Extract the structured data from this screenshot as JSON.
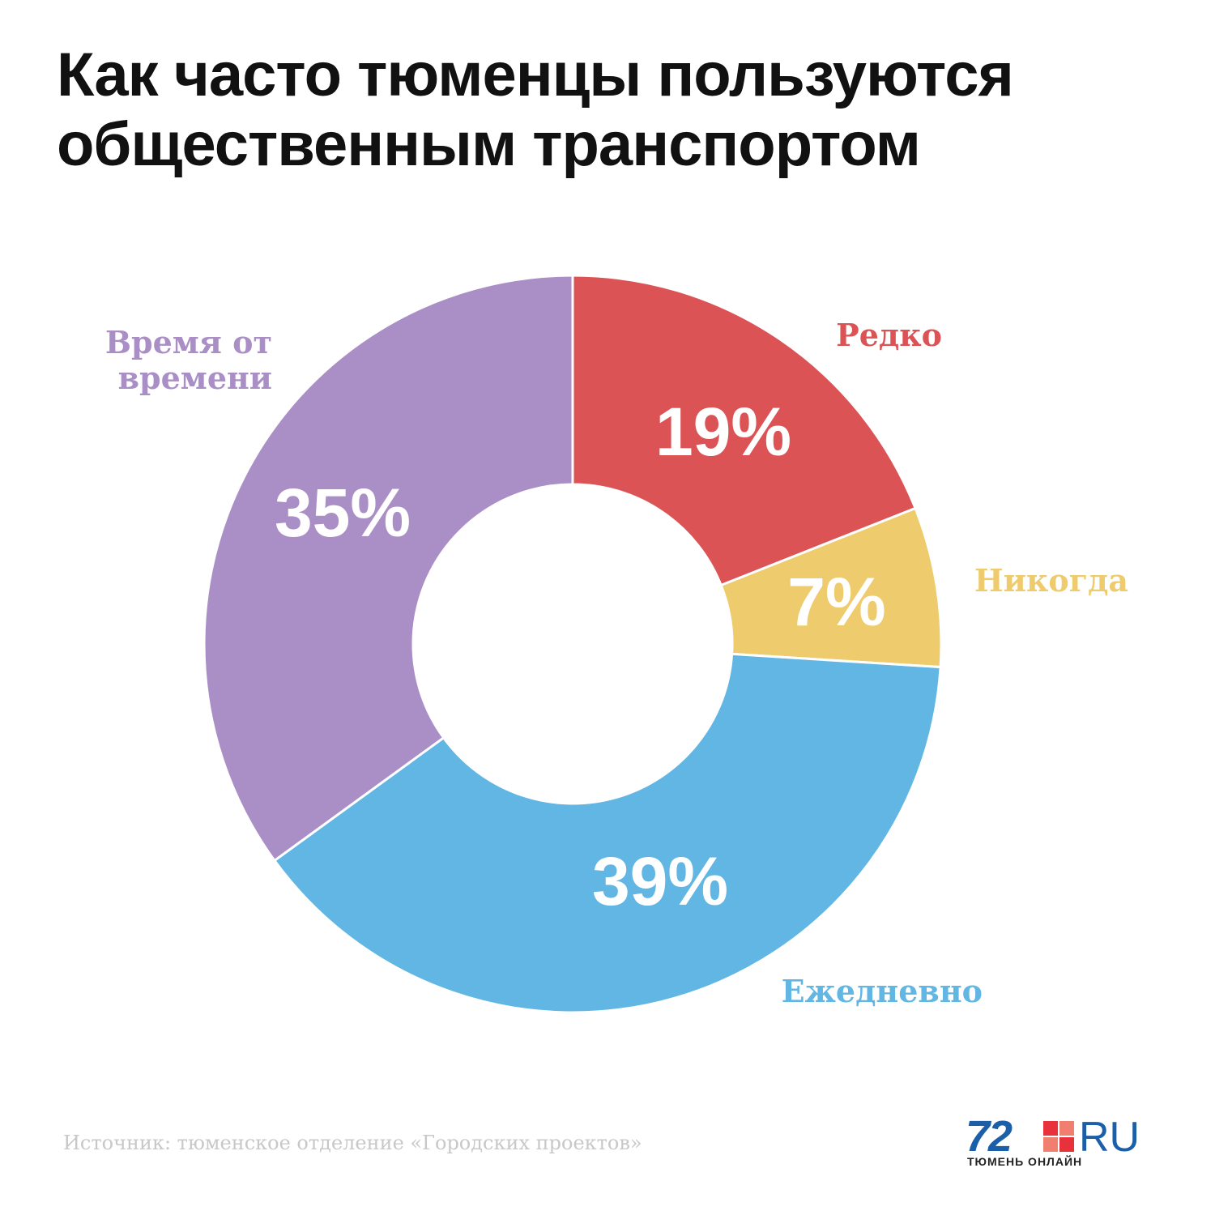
{
  "title": {
    "line1": "Как часто тюменцы пользуются",
    "line2": "общественным транспортом"
  },
  "chart_data": {
    "type": "pie",
    "donut": true,
    "legend": "none",
    "categories": [
      "Редко",
      "Никогда",
      "Ежедневно",
      "Время от времени"
    ],
    "values": [
      19,
      7,
      39,
      35
    ],
    "labels": [
      "19%",
      "7%",
      "39%",
      "35%"
    ],
    "colors": [
      "#dc5356",
      "#eecb6c",
      "#61b6e4",
      "#aa8fc6"
    ]
  },
  "source": "Источник: тюменское отделение «Городских проектов»",
  "logo": {
    "number": "72",
    "suffix": "RU",
    "tagline": "ТЮМЕНЬ ОНЛАЙН"
  }
}
